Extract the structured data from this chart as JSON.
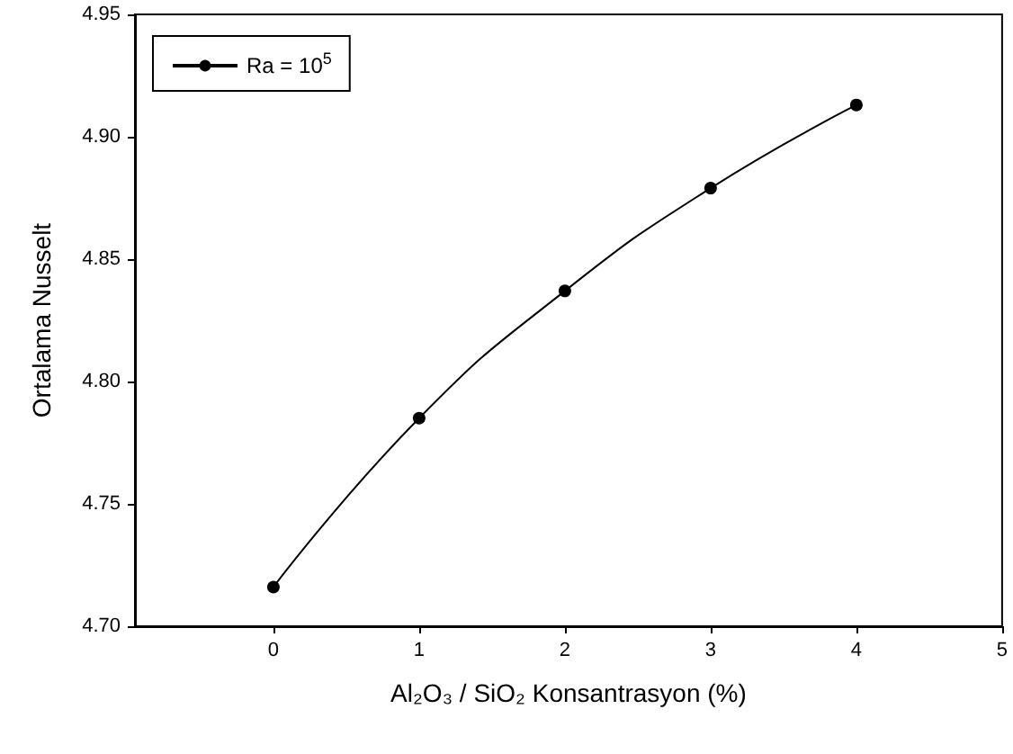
{
  "chart_data": {
    "type": "line",
    "xlabel": "Al₂O₃ / SiO₂ Konsantrasyon (%)",
    "ylabel": "Ortalama Nusselt",
    "x": [
      0,
      1,
      2,
      3,
      4
    ],
    "series": [
      {
        "name": "Ra = 10$^{5}$",
        "color": "#000000",
        "values": [
          4.716,
          4.785,
          4.837,
          4.879,
          4.913
        ]
      }
    ],
    "xlim": [
      -0.95,
      5
    ],
    "xticks": [
      0,
      1,
      2,
      3,
      4,
      5
    ],
    "ylim": [
      4.7,
      4.95
    ],
    "yticks": [
      {
        "value": 4.7,
        "label": "4.70"
      },
      {
        "value": 4.75,
        "label": "4.75"
      },
      {
        "value": 4.8,
        "label": "4.80"
      },
      {
        "value": 4.85,
        "label": "4.85"
      },
      {
        "value": 4.9,
        "label": "4.90"
      },
      {
        "value": 4.95,
        "label": "4.95"
      }
    ],
    "grid": false,
    "legend": "top left",
    "marker": "circle",
    "line_style": "solid"
  }
}
